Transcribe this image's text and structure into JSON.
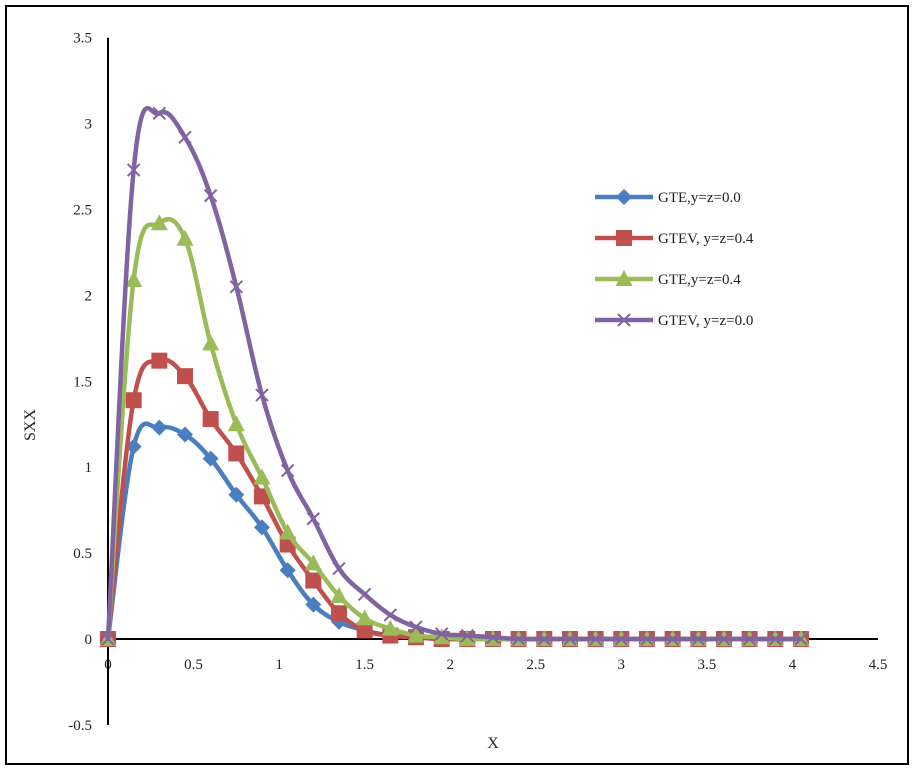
{
  "chart_data": {
    "type": "line",
    "xlabel": "X",
    "ylabel": "SXX",
    "xlim": [
      0,
      4.5
    ],
    "ylim": [
      -0.5,
      3.5
    ],
    "x_ticks": [
      "0",
      "0.5",
      "1",
      "1.5",
      "2",
      "2.5",
      "3",
      "3.5",
      "4",
      "4.5"
    ],
    "y_ticks": [
      "-0.5",
      "0",
      "0.5",
      "1",
      "1.5",
      "2",
      "2.5",
      "3",
      "3.5"
    ],
    "x_tick_values": [
      0,
      0.5,
      1,
      1.5,
      2,
      2.5,
      3,
      3.5,
      4,
      4.5
    ],
    "y_tick_values": [
      -0.5,
      0,
      0.5,
      1,
      1.5,
      2,
      2.5,
      3,
      3.5
    ],
    "grid": false,
    "legend_position": "right",
    "x": [
      0,
      0.15,
      0.3,
      0.45,
      0.6,
      0.75,
      0.9,
      1.05,
      1.2,
      1.35,
      1.5,
      1.65,
      1.8,
      1.95,
      2.1,
      2.25,
      2.4,
      2.55,
      2.7,
      2.85,
      3.0,
      3.15,
      3.3,
      3.45,
      3.6,
      3.75,
      3.9,
      4.05
    ],
    "series": [
      {
        "name": "GTE,y=z=0.0",
        "color": "#4a7ec0",
        "marker": "diamond",
        "values": [
          0,
          1.12,
          1.23,
          1.19,
          1.05,
          0.84,
          0.65,
          0.4,
          0.2,
          0.1,
          0.05,
          0.02,
          0.01,
          0,
          0,
          0,
          0,
          0,
          0,
          0,
          0,
          0,
          0,
          0,
          0,
          0,
          0,
          0
        ]
      },
      {
        "name": "GTEV, y=z=0.4",
        "color": "#c0504d",
        "marker": "square",
        "values": [
          0,
          1.39,
          1.62,
          1.53,
          1.28,
          1.08,
          0.83,
          0.55,
          0.34,
          0.15,
          0.05,
          0.02,
          0.01,
          0,
          0,
          0,
          0,
          0,
          0,
          0,
          0,
          0,
          0,
          0,
          0,
          0,
          0,
          0
        ]
      },
      {
        "name": "GTE,y=z=0.4",
        "color": "#9bbb59",
        "marker": "triangle",
        "values": [
          0,
          2.09,
          2.42,
          2.33,
          1.72,
          1.25,
          0.94,
          0.62,
          0.44,
          0.25,
          0.12,
          0.06,
          0.02,
          0.01,
          0,
          0,
          0,
          0,
          0,
          0,
          0,
          0,
          0,
          0,
          0,
          0,
          0,
          0
        ]
      },
      {
        "name": "GTEV, y=z=0.0",
        "color": "#8064a2",
        "marker": "x",
        "values": [
          0,
          2.73,
          3.06,
          2.92,
          2.58,
          2.05,
          1.42,
          0.98,
          0.7,
          0.41,
          0.26,
          0.14,
          0.07,
          0.03,
          0.02,
          0.01,
          0,
          0,
          0,
          0,
          0,
          0,
          0,
          0,
          0,
          0,
          0,
          0
        ]
      }
    ]
  }
}
